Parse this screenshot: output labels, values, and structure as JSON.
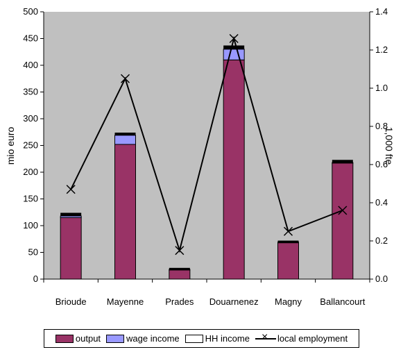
{
  "chart_data": {
    "type": "bar",
    "categories": [
      "Brioude",
      "Mayenne",
      "Prades",
      "Douarnenez",
      "Magny",
      "Ballancourt"
    ],
    "series": [
      {
        "name": "output",
        "kind": "bar-stack",
        "color": "#993366",
        "values": [
          115,
          252,
          17,
          410,
          68,
          217
        ]
      },
      {
        "name": "wage income",
        "kind": "bar-stack",
        "color": "#9999FF",
        "values": [
          3,
          17,
          1,
          20,
          1,
          1
        ]
      },
      {
        "name": "HH income",
        "kind": "bar-stack",
        "color": "#FFFFFF",
        "values": [
          0,
          0,
          0,
          0,
          0,
          0
        ]
      },
      {
        "name": "local employment",
        "kind": "line",
        "axis": "right",
        "color": "#000000",
        "values": [
          0.47,
          1.05,
          0.15,
          1.26,
          0.25,
          0.36
        ]
      }
    ],
    "cap_color": "#000000",
    "cap_values": [
      6,
      5,
      3,
      7,
      3,
      5
    ],
    "ylabel": "mio euro",
    "y2label": "1,000 fte",
    "ylim": [
      0,
      500
    ],
    "y2lim": [
      0,
      1.4
    ],
    "yticks": [
      "0",
      "50",
      "100",
      "150",
      "200",
      "250",
      "300",
      "350",
      "400",
      "450",
      "500"
    ],
    "y2ticks": [
      "0.0",
      "0.2",
      "0.4",
      "0.6",
      "0.8",
      "1.0",
      "1.2",
      "1.4"
    ],
    "plot_background": "#C0C0C0",
    "grid": false,
    "legend_position": "bottom"
  },
  "legend": {
    "output": "output",
    "wage": "wage income",
    "hh": "HH income",
    "employment": "local employment"
  }
}
